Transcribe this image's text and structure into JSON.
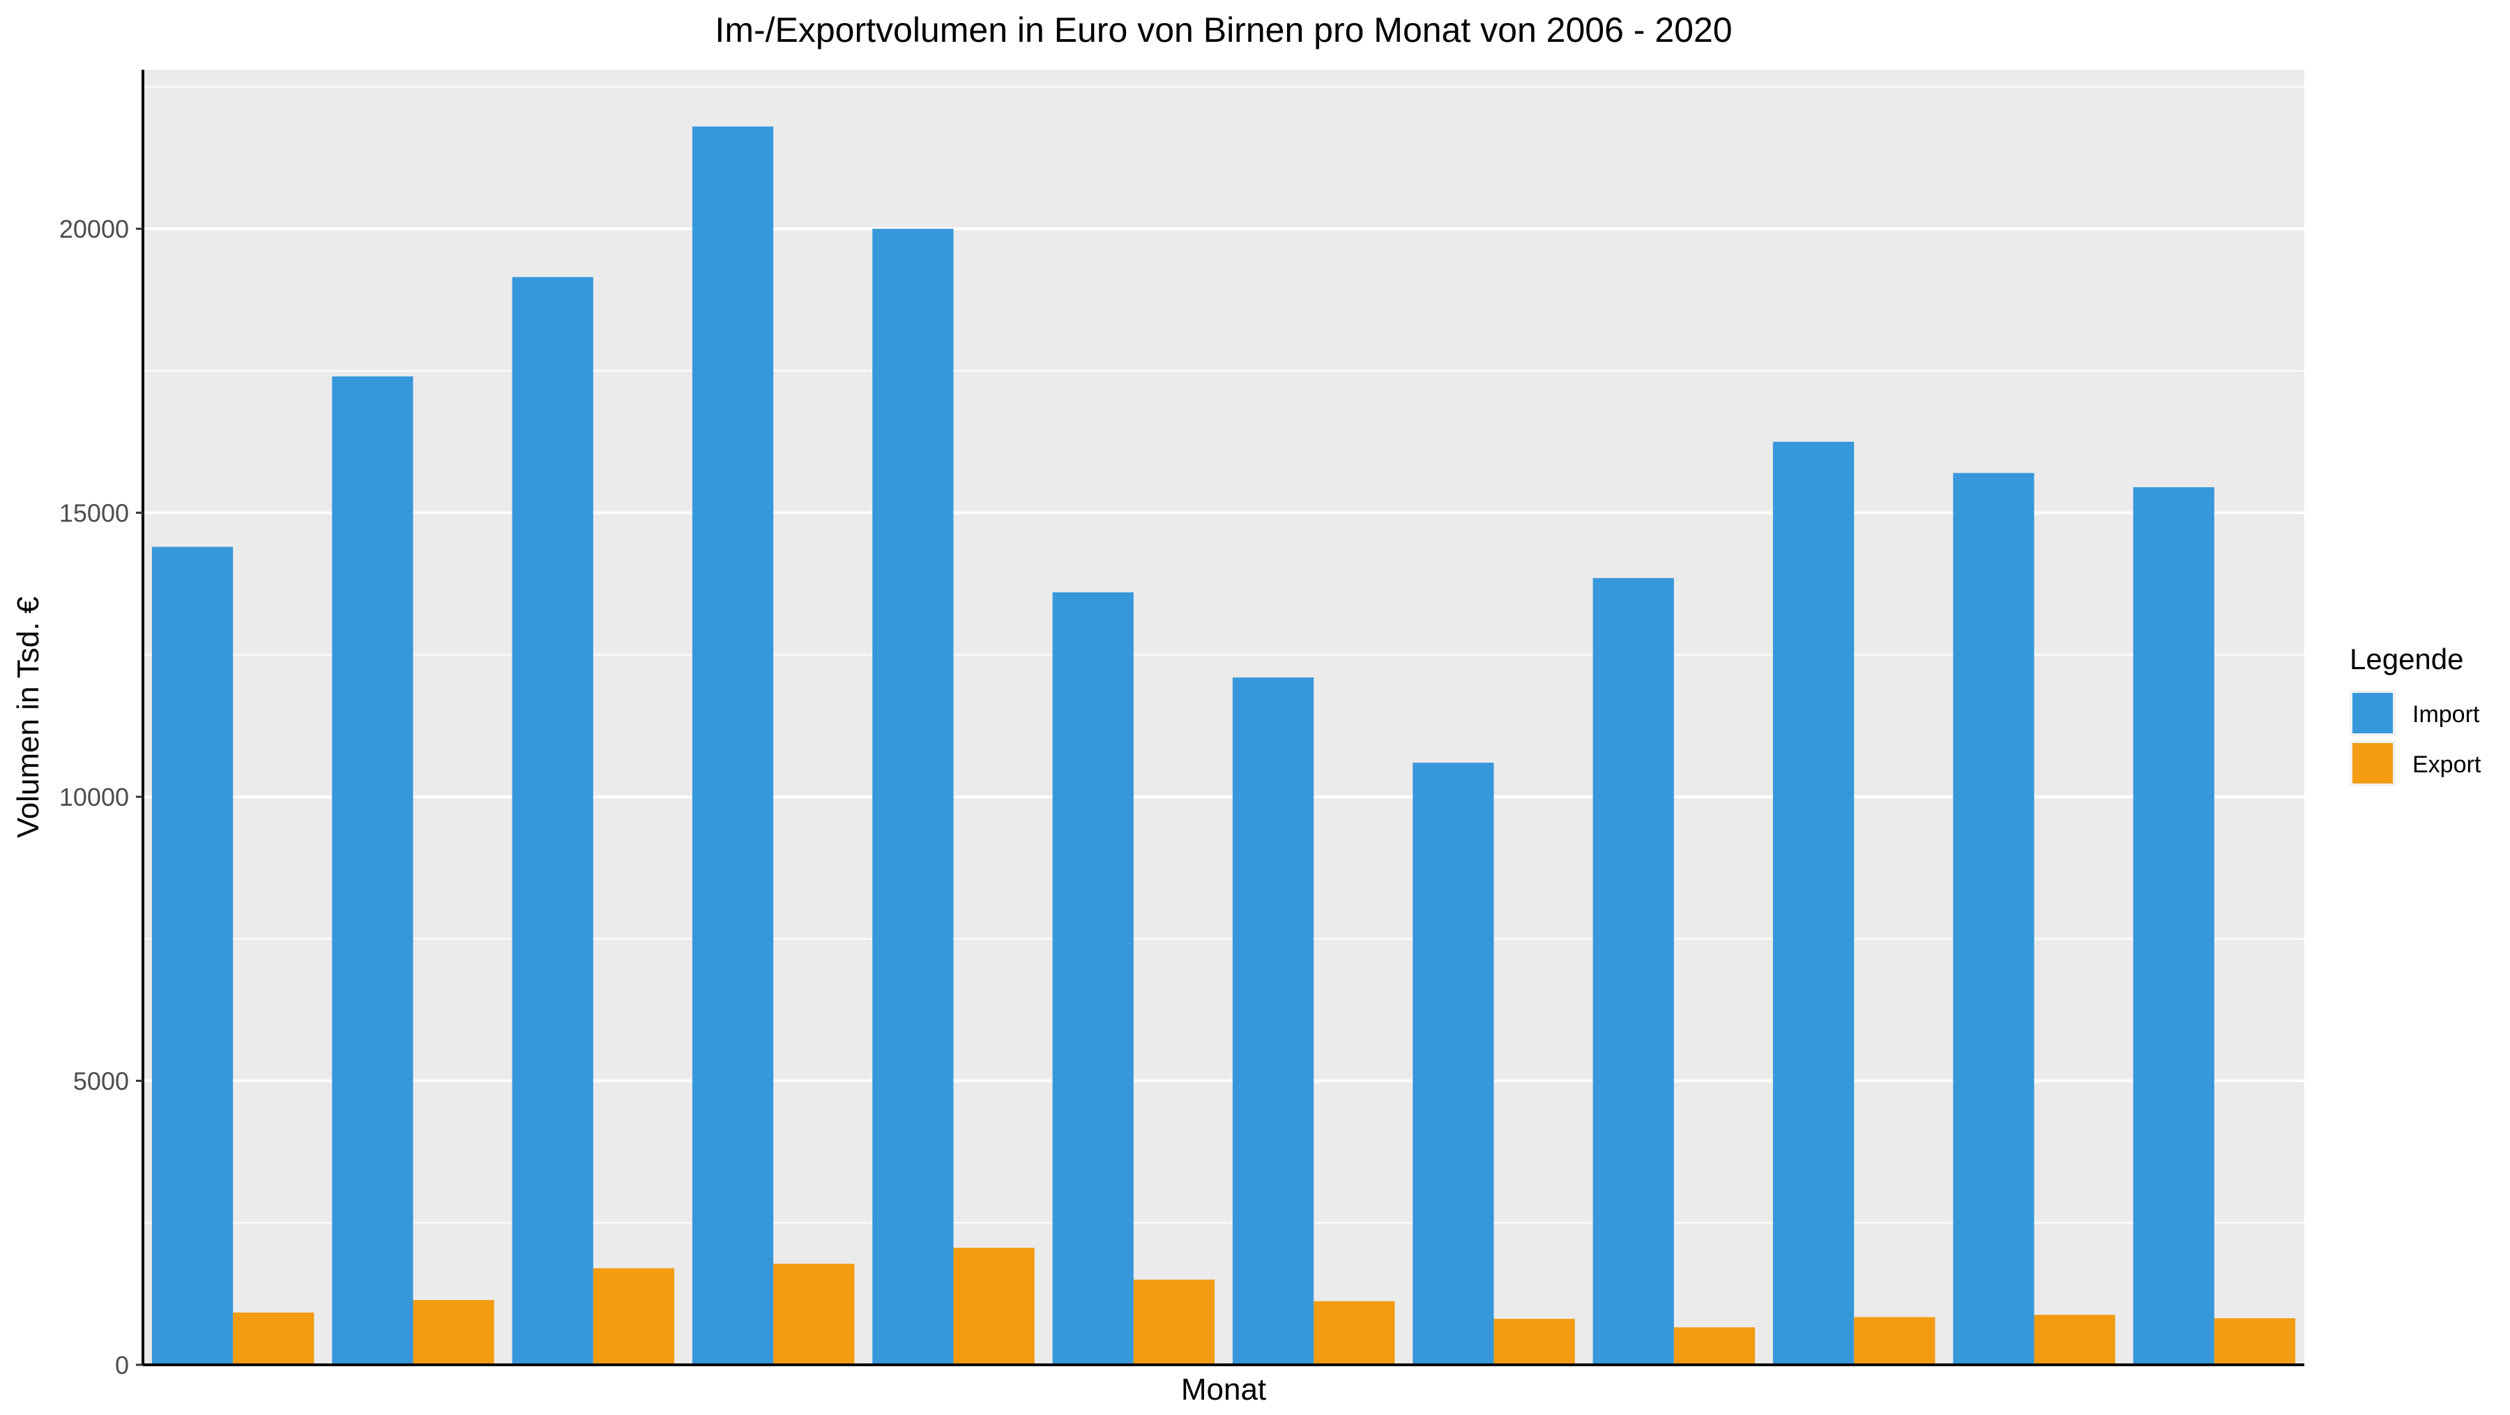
{
  "chart_data": {
    "type": "bar",
    "title": "Im-/Exportvolumen in Euro von Birnen pro Monat von 2006 - 2020",
    "xlabel": "Monat",
    "ylabel": "Volumen in Tsd. €",
    "categories": [
      "",
      "",
      "",
      "",
      "",
      "",
      "",
      "",
      "",
      "",
      "",
      ""
    ],
    "ylim": [
      0,
      22800
    ],
    "yticks": [
      0,
      5000,
      10000,
      15000,
      20000
    ],
    "grid": true,
    "legend": {
      "title": "Legende",
      "position": "right"
    },
    "series": [
      {
        "name": "Import",
        "color": "#3797DB",
        "values": [
          14400,
          17400,
          19150,
          21800,
          20000,
          13600,
          12100,
          10600,
          13850,
          16250,
          15700,
          15450
        ]
      },
      {
        "name": "Export",
        "color": "#F39C12",
        "values": [
          920,
          1140,
          1700,
          1780,
          2060,
          1500,
          1120,
          810,
          660,
          840,
          880,
          820
        ]
      }
    ]
  }
}
